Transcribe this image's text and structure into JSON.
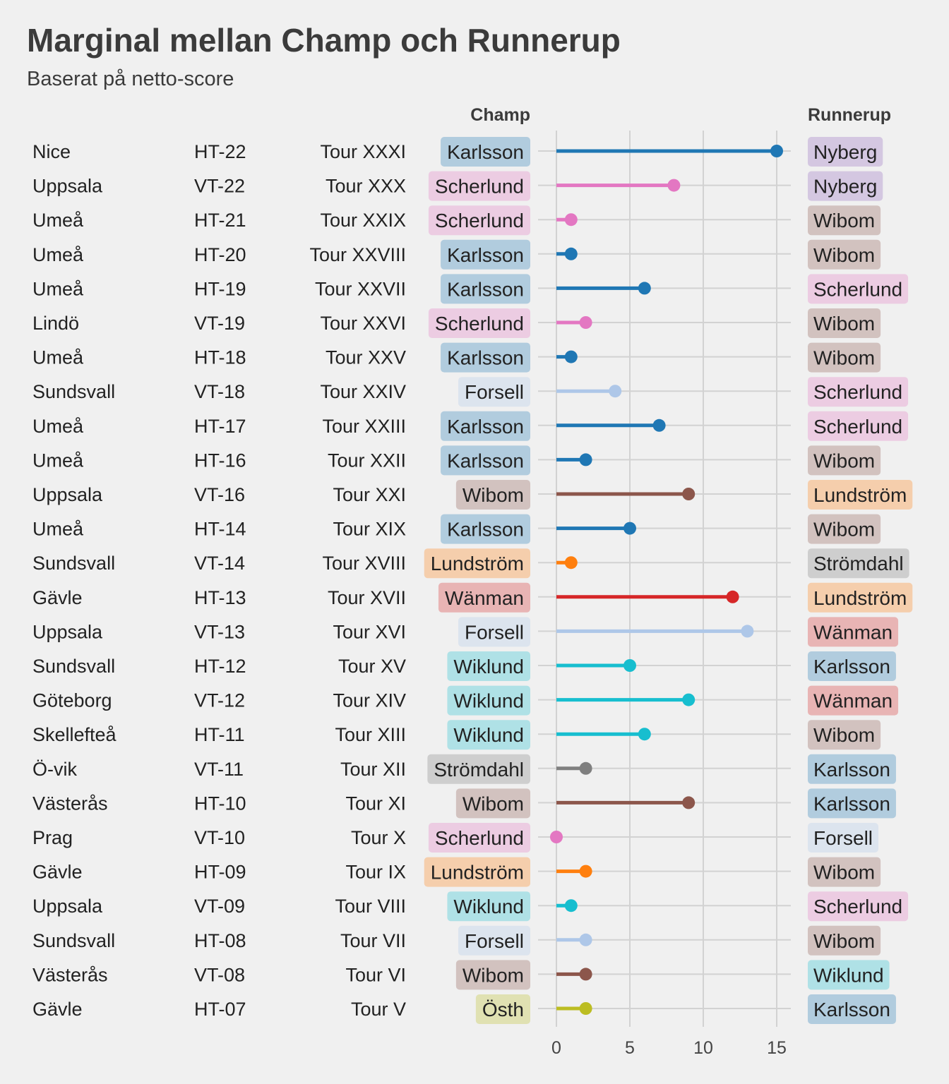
{
  "chart_data": {
    "type": "lollipop",
    "title": "Marginal mellan Champ och Runnerup",
    "subtitle": "Baserat på netto-score",
    "champ_header": "Champ",
    "runnerup_header": "Runnerup",
    "xlim": [
      0,
      15
    ],
    "xticks": [
      0,
      5,
      10,
      15
    ],
    "grid": true,
    "rows": [
      {
        "place": "Nice",
        "season": "HT-22",
        "tour": "Tour XXXI",
        "champ": "Karlsson",
        "runnerup": "Nyberg",
        "margin": 15
      },
      {
        "place": "Uppsala",
        "season": "VT-22",
        "tour": "Tour XXX",
        "champ": "Scherlund",
        "runnerup": "Nyberg",
        "margin": 8
      },
      {
        "place": "Umeå",
        "season": "HT-21",
        "tour": "Tour XXIX",
        "champ": "Scherlund",
        "runnerup": "Wibom",
        "margin": 1
      },
      {
        "place": "Umeå",
        "season": "HT-20",
        "tour": "Tour XXVIII",
        "champ": "Karlsson",
        "runnerup": "Wibom",
        "margin": 1
      },
      {
        "place": "Umeå",
        "season": "HT-19",
        "tour": "Tour XXVII",
        "champ": "Karlsson",
        "runnerup": "Scherlund",
        "margin": 6
      },
      {
        "place": "Lindö",
        "season": "VT-19",
        "tour": "Tour XXVI",
        "champ": "Scherlund",
        "runnerup": "Wibom",
        "margin": 2
      },
      {
        "place": "Umeå",
        "season": "HT-18",
        "tour": "Tour XXV",
        "champ": "Karlsson",
        "runnerup": "Wibom",
        "margin": 1
      },
      {
        "place": "Sundsvall",
        "season": "VT-18",
        "tour": "Tour XXIV",
        "champ": "Forsell",
        "runnerup": "Scherlund",
        "margin": 4
      },
      {
        "place": "Umeå",
        "season": "HT-17",
        "tour": "Tour XXIII",
        "champ": "Karlsson",
        "runnerup": "Scherlund",
        "margin": 7
      },
      {
        "place": "Umeå",
        "season": "HT-16",
        "tour": "Tour XXII",
        "champ": "Karlsson",
        "runnerup": "Wibom",
        "margin": 2
      },
      {
        "place": "Uppsala",
        "season": "VT-16",
        "tour": "Tour XXI",
        "champ": "Wibom",
        "runnerup": "Lundström",
        "margin": 9
      },
      {
        "place": "Umeå",
        "season": "HT-14",
        "tour": "Tour XIX",
        "champ": "Karlsson",
        "runnerup": "Wibom",
        "margin": 5
      },
      {
        "place": "Sundsvall",
        "season": "VT-14",
        "tour": "Tour XVIII",
        "champ": "Lundström",
        "runnerup": "Strömdahl",
        "margin": 1
      },
      {
        "place": "Gävle",
        "season": "HT-13",
        "tour": "Tour XVII",
        "champ": "Wänman",
        "runnerup": "Lundström",
        "margin": 12
      },
      {
        "place": "Uppsala",
        "season": "VT-13",
        "tour": "Tour XVI",
        "champ": "Forsell",
        "runnerup": "Wänman",
        "margin": 13
      },
      {
        "place": "Sundsvall",
        "season": "HT-12",
        "tour": "Tour XV",
        "champ": "Wiklund",
        "runnerup": "Karlsson",
        "margin": 5
      },
      {
        "place": "Göteborg",
        "season": "VT-12",
        "tour": "Tour XIV",
        "champ": "Wiklund",
        "runnerup": "Wänman",
        "margin": 9
      },
      {
        "place": "Skellefteå",
        "season": "HT-11",
        "tour": "Tour XIII",
        "champ": "Wiklund",
        "runnerup": "Wibom",
        "margin": 6
      },
      {
        "place": "Ö-vik",
        "season": "VT-11",
        "tour": "Tour XII",
        "champ": "Strömdahl",
        "runnerup": "Karlsson",
        "margin": 2
      },
      {
        "place": "Västerås",
        "season": "HT-10",
        "tour": "Tour XI",
        "champ": "Wibom",
        "runnerup": "Karlsson",
        "margin": 9
      },
      {
        "place": "Prag",
        "season": "VT-10",
        "tour": "Tour X",
        "champ": "Scherlund",
        "runnerup": "Forsell",
        "margin": 0
      },
      {
        "place": "Gävle",
        "season": "HT-09",
        "tour": "Tour IX",
        "champ": "Lundström",
        "runnerup": "Wibom",
        "margin": 2
      },
      {
        "place": "Uppsala",
        "season": "VT-09",
        "tour": "Tour VIII",
        "champ": "Wiklund",
        "runnerup": "Scherlund",
        "margin": 1
      },
      {
        "place": "Sundsvall",
        "season": "HT-08",
        "tour": "Tour VII",
        "champ": "Forsell",
        "runnerup": "Wibom",
        "margin": 2
      },
      {
        "place": "Västerås",
        "season": "VT-08",
        "tour": "Tour VI",
        "champ": "Wibom",
        "runnerup": "Wiklund",
        "margin": 2
      },
      {
        "place": "Gävle",
        "season": "HT-07",
        "tour": "Tour V",
        "champ": "Östh",
        "runnerup": "Karlsson",
        "margin": 2
      }
    ],
    "player_colors": {
      "Karlsson": "#1f77b4",
      "Scherlund": "#e377c2",
      "Forsell": "#aec7e8",
      "Wibom": "#8c564b",
      "Lundström": "#ff7f0e",
      "Wänman": "#d62728",
      "Wiklund": "#17becf",
      "Strömdahl": "#7f7f7f",
      "Östh": "#bcbd22",
      "Nyberg": "#9467bd"
    },
    "background_color": "#f0f0f0",
    "grid_color": "#d2d2d2"
  }
}
